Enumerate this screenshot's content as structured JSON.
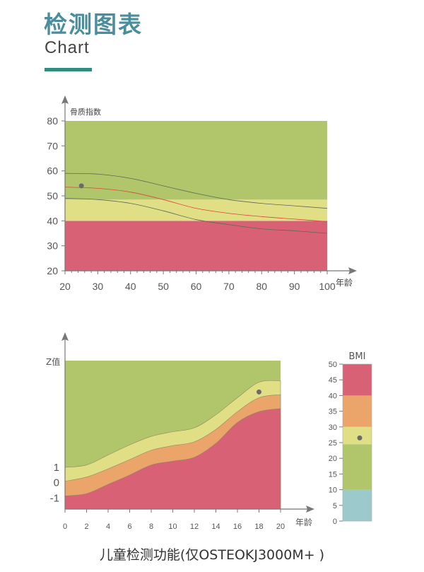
{
  "header": {
    "title": "检测图表",
    "subtitle": "Chart"
  },
  "caption": "儿童检测功能(仅OSTEOKJ3000M+ )",
  "colors": {
    "green": "#b1c66b",
    "yellow": "#e1df86",
    "red": "#d96176",
    "orange": "#eba46a",
    "blue": "#9cc9cb",
    "curve": "#5a6a55",
    "median": "#d9463a",
    "point": "#6a6a6a",
    "axis": "#777777"
  },
  "chart_data": [
    {
      "type": "area",
      "title": "",
      "ylabel": "骨质指数",
      "xlabel": "年龄",
      "xlim": [
        20,
        100
      ],
      "ylim": [
        20,
        80
      ],
      "xticks": [
        20,
        30,
        40,
        50,
        60,
        70,
        80,
        90,
        100
      ],
      "yticks": [
        20,
        30,
        40,
        50,
        60,
        70,
        80
      ],
      "zones": [
        {
          "name": "red",
          "from": 20,
          "to": 40
        },
        {
          "name": "yellow",
          "from": 40,
          "to": 48.5
        },
        {
          "name": "green",
          "from": 48.5,
          "to": 80
        }
      ],
      "x": [
        20,
        30,
        40,
        50,
        60,
        70,
        80,
        90,
        100
      ],
      "series": [
        {
          "name": "upper",
          "values": [
            59,
            58.7,
            57,
            54,
            51,
            48.5,
            47,
            46,
            45
          ]
        },
        {
          "name": "median",
          "values": [
            53.5,
            53,
            51.5,
            48.5,
            45,
            43,
            41.7,
            40.7,
            39.7
          ]
        },
        {
          "name": "lower",
          "values": [
            49,
            48.5,
            47,
            44,
            40.5,
            38.5,
            36.8,
            36,
            35
          ]
        }
      ],
      "point": {
        "x": 25,
        "y": 54
      }
    },
    {
      "type": "area",
      "ylabel": "Z值",
      "xlabel": "年龄",
      "xlim": [
        0,
        20
      ],
      "ylim": [
        -1.8,
        7.8
      ],
      "xticks": [
        0,
        2,
        4,
        6,
        8,
        10,
        12,
        14,
        16,
        18,
        20
      ],
      "yticks": [
        1,
        0,
        -1
      ],
      "x": [
        0,
        2,
        4,
        6,
        8,
        10,
        12,
        14,
        16,
        18,
        20
      ],
      "boundaries": [
        {
          "name": "green-yellow",
          "values": [
            0.9,
            1.05,
            1.7,
            2.35,
            2.9,
            3.2,
            3.45,
            4.3,
            5.4,
            6.4,
            6.5
          ]
        },
        {
          "name": "yellow-orange",
          "values": [
            0,
            0.27,
            0.8,
            1.4,
            2,
            2.3,
            2.55,
            3.35,
            4.5,
            5.4,
            5.6
          ]
        },
        {
          "name": "orange-red",
          "values": [
            -0.95,
            -0.8,
            -0.2,
            0.4,
            1.05,
            1.3,
            1.55,
            2.45,
            3.8,
            4.5,
            4.7
          ]
        }
      ],
      "point": {
        "x": 18,
        "y": 5.77
      }
    },
    {
      "type": "bar",
      "title": "BMI",
      "ylim": [
        0,
        50
      ],
      "yticks": [
        0,
        5,
        10,
        15,
        20,
        25,
        30,
        35,
        40,
        45,
        50
      ],
      "zones": [
        {
          "name": "blue",
          "from": 0,
          "to": 10
        },
        {
          "name": "green",
          "from": 10,
          "to": 24.5
        },
        {
          "name": "yellow",
          "from": 24.5,
          "to": 30
        },
        {
          "name": "orange",
          "from": 30,
          "to": 40
        },
        {
          "name": "red",
          "from": 40,
          "to": 50
        }
      ],
      "point": {
        "y": 26.5
      }
    }
  ]
}
